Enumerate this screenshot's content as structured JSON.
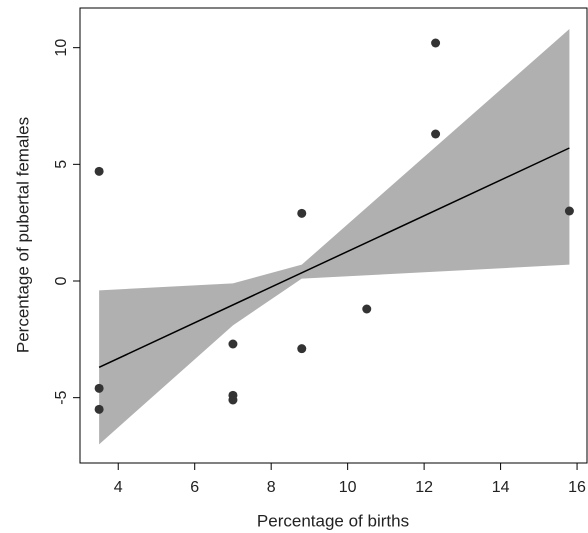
{
  "chart_data": {
    "type": "scatter",
    "x_label": "Percentage of births",
    "y_label": "Percentage of pubertal females",
    "x": [
      3.5,
      3.5,
      3.5,
      7,
      7,
      7,
      8.8,
      8.8,
      10.5,
      12.3,
      12.3,
      15.8
    ],
    "values": [
      4.7,
      -4.6,
      -5.5,
      -2.7,
      -4.9,
      -5.1,
      2.9,
      -2.9,
      -1.2,
      10.2,
      6.3,
      3.0
    ],
    "color": "#333333",
    "fit": {
      "x": [
        3.5,
        15.8
      ],
      "y": [
        -3.7,
        5.7
      ],
      "color": "#000000"
    },
    "band": {
      "x": [
        3.5,
        7,
        8.8,
        15.8
      ],
      "upper": [
        -0.4,
        -0.1,
        0.7,
        10.8
      ],
      "lower": [
        -7.0,
        -1.9,
        0.1,
        0.7
      ],
      "color": "#b0b0b0"
    },
    "xlim": [
      3,
      16.26
    ],
    "ylim": [
      -7.8,
      11.7
    ],
    "xticks": [
      4,
      6,
      8,
      10,
      12,
      14,
      16
    ],
    "yticks": [
      -5,
      0,
      5,
      10
    ]
  }
}
